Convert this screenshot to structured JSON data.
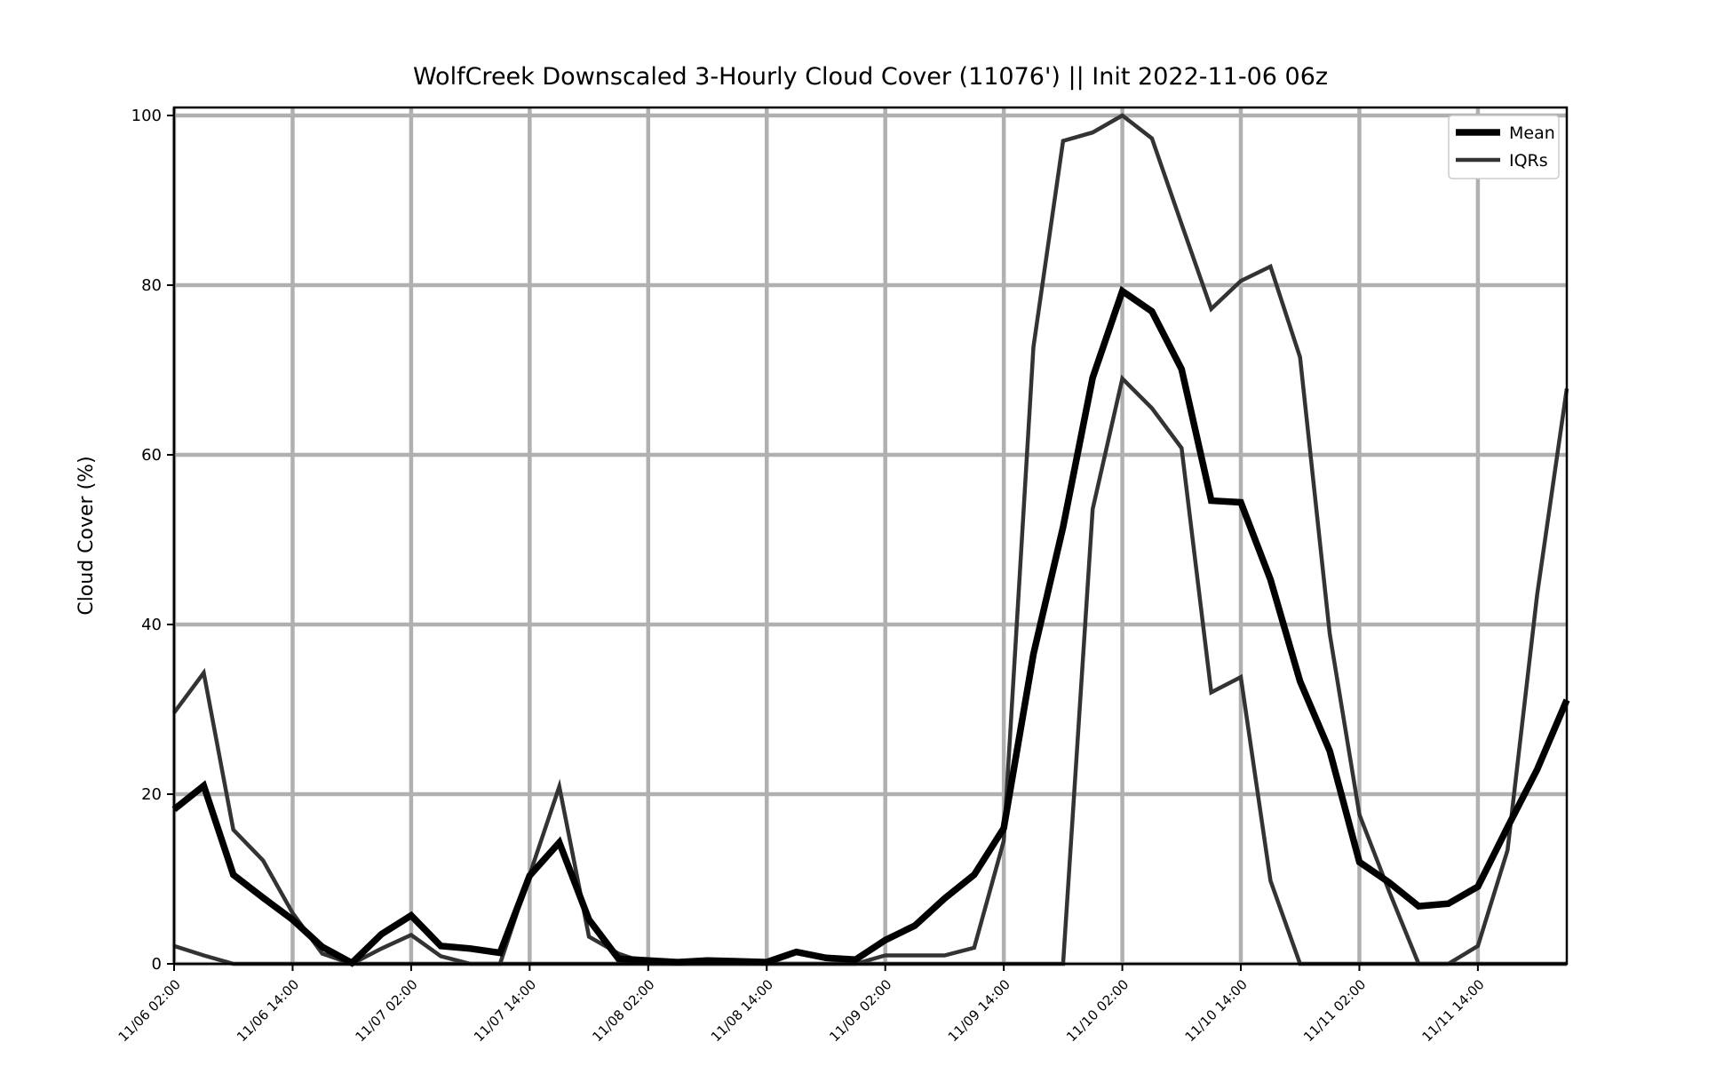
{
  "chart_data": {
    "type": "line",
    "title": "WolfCreek Downscaled 3-Hourly Cloud Cover (11076') || Init 2022-11-06 06z",
    "ylabel": "Cloud Cover (%)",
    "xlabel": "",
    "ylim": [
      0,
      100
    ],
    "yticks": [
      0,
      20,
      40,
      60,
      80,
      100
    ],
    "x_start": "11/06 02:00",
    "x_step_hours": 3,
    "xticks": [
      {
        "index": 0,
        "label": "11/06 02:00"
      },
      {
        "index": 4,
        "label": "11/06 14:00"
      },
      {
        "index": 8,
        "label": "11/07 02:00"
      },
      {
        "index": 12,
        "label": "11/07 14:00"
      },
      {
        "index": 16,
        "label": "11/08 02:00"
      },
      {
        "index": 20,
        "label": "11/08 14:00"
      },
      {
        "index": 24,
        "label": "11/09 02:00"
      },
      {
        "index": 28,
        "label": "11/09 14:00"
      },
      {
        "index": 32,
        "label": "11/10 02:00"
      },
      {
        "index": 36,
        "label": "11/10 14:00"
      },
      {
        "index": 40,
        "label": "11/11 02:00"
      },
      {
        "index": 44,
        "label": "11/11 14:00"
      }
    ],
    "grid": true,
    "legend": {
      "placement": "top-right",
      "entries": [
        "Mean",
        "IQRs"
      ]
    },
    "series": [
      {
        "name": "Mean",
        "color": "#000000",
        "values": [
          18.2,
          21.0,
          10.5,
          7.8,
          5.2,
          2.0,
          0.1,
          3.5,
          5.7,
          2.1,
          1.8,
          1.3,
          10.4,
          14.3,
          5.2,
          0.6,
          0.4,
          0.2,
          0.4,
          0.3,
          0.2,
          1.4,
          0.7,
          0.5,
          2.8,
          4.5,
          7.7,
          10.5,
          16.0,
          36.5,
          51.5,
          69.1,
          79.3,
          76.9,
          70.1,
          54.6,
          54.4,
          45.3,
          33.3,
          25.1,
          12.0,
          9.6,
          6.8,
          7.1,
          9.1,
          16.1,
          22.9,
          31.1
        ]
      },
      {
        "name": "IQRs",
        "color": "#333333",
        "values": [
          29.6,
          34.3,
          15.8,
          12.2,
          6.0,
          1.2,
          0.0,
          1.8,
          3.4,
          0.9,
          0.0,
          0.0,
          10.5,
          20.9,
          3.2,
          1.2,
          0.0,
          0.0,
          0.0,
          0.0,
          0.0,
          0.0,
          0.0,
          0.0,
          1.0,
          1.0,
          1.0,
          1.9,
          14.5,
          72.7,
          97.0,
          98.0,
          100.0,
          97.3,
          87.2,
          77.2,
          80.5,
          82.2,
          71.5,
          38.9,
          17.6,
          8.6,
          0.0,
          0.0,
          2.1,
          13.4,
          43.5,
          67.8
        ]
      },
      {
        "name": "IQRs",
        "color": "#333333",
        "values": [
          2.1,
          1.0,
          0.0,
          0.0,
          0.0,
          0.0,
          0.0,
          0.0,
          0.0,
          0.0,
          0.0,
          0.0,
          0.0,
          0.0,
          0.0,
          0.0,
          0.0,
          0.0,
          0.0,
          0.0,
          0.0,
          0.0,
          0.0,
          0.0,
          0.0,
          0.0,
          0.0,
          0.0,
          0.0,
          0.0,
          0.0,
          53.6,
          69.0,
          65.5,
          60.8,
          32.0,
          33.8,
          9.8,
          0.0,
          0.0,
          0.0,
          0.0,
          0.0,
          0.0,
          0.0,
          0.0,
          0.0,
          0.0
        ]
      }
    ]
  }
}
